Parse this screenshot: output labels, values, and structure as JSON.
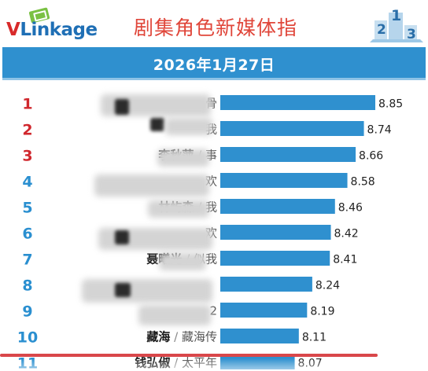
{
  "header": {
    "logo_v": "V",
    "logo_rest": "Linkage",
    "title": "剧集角色新媒体指",
    "podium_digits": [
      "2",
      "1",
      "3"
    ]
  },
  "banner": {
    "date": "2026年1月27日"
  },
  "colors": {
    "bar": "#2f90cf",
    "rank_top": "#d0272d",
    "rank_rest": "#2a8fd0",
    "name": "#1a1a1a",
    "drama": "#555555",
    "banner": "#2f90cf"
  },
  "chart_data": {
    "type": "bar",
    "orientation": "horizontal",
    "ranks": [
      "1",
      "2",
      "3",
      "4",
      "5",
      "6",
      "7",
      "8",
      "9",
      "10",
      "11"
    ],
    "rows": [
      {
        "rank": "1",
        "name": "",
        "drama": "骨",
        "value": 8.85
      },
      {
        "rank": "2",
        "name": "",
        "drama": "我",
        "value": 8.74
      },
      {
        "rank": "3",
        "name": "李秋萍",
        "drama": "事",
        "value": 8.66
      },
      {
        "rank": "4",
        "name": "",
        "drama": "欢",
        "value": 8.58
      },
      {
        "rank": "5",
        "name": "林屿森",
        "drama": "我",
        "value": 8.46
      },
      {
        "rank": "6",
        "name": "",
        "drama": "欢",
        "value": 8.42
      },
      {
        "rank": "7",
        "name": "聂曦光",
        "drama": "似我",
        "value": 8.41
      },
      {
        "rank": "8",
        "name": "",
        "drama": "",
        "value": 8.24
      },
      {
        "rank": "9",
        "name": "",
        "drama": "2",
        "value": 8.19
      },
      {
        "rank": "10",
        "name": "藏海",
        "drama": "藏海传",
        "value": 8.11
      },
      {
        "rank": "11",
        "name": "钱弘俶",
        "drama": "太平年",
        "value": 8.07
      }
    ],
    "value_labels": [
      "8.85",
      "8.74",
      "8.66",
      "8.58",
      "8.46",
      "8.42",
      "8.41",
      "8.24",
      "8.19",
      "8.11",
      "8.07"
    ],
    "separator": "/",
    "title": "",
    "xlabel": "",
    "ylabel": "",
    "grid": false,
    "legend": "none"
  }
}
